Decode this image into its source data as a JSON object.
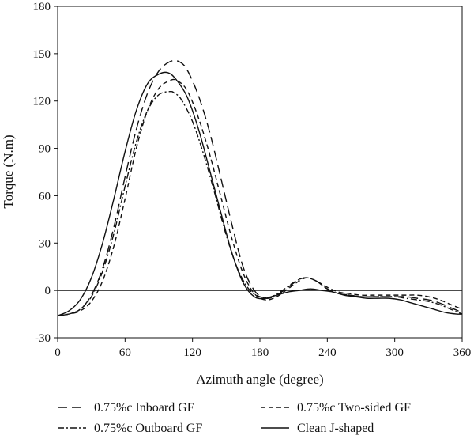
{
  "chart_data": {
    "type": "line",
    "title": "",
    "xlabel": "Azimuth angle (degree)",
    "ylabel": "Torque (N.m)",
    "xlim": [
      0,
      360
    ],
    "ylim": [
      -30,
      180
    ],
    "xticks": [
      0,
      60,
      120,
      180,
      240,
      300,
      360
    ],
    "yticks": [
      -30,
      0,
      30,
      60,
      90,
      120,
      150,
      180
    ],
    "zero_line": true,
    "grid": false,
    "legend_position": "bottom",
    "series": [
      {
        "name": "0.75%c Inboard GF",
        "dash": "long-dash",
        "x": [
          0,
          10,
          20,
          30,
          40,
          50,
          60,
          70,
          80,
          90,
          100,
          108,
          115,
          125,
          135,
          145,
          155,
          165,
          175,
          185,
          195,
          205,
          215,
          222,
          230,
          240,
          250,
          260,
          270,
          280,
          290,
          300,
          310,
          320,
          330,
          340,
          350,
          360
        ],
        "y": [
          -16,
          -15,
          -12,
          -3,
          14,
          40,
          72,
          102,
          125,
          139,
          145,
          145,
          140,
          124,
          101,
          72,
          42,
          15,
          0,
          -5,
          -3,
          2,
          7,
          8,
          6,
          1,
          -2,
          -3,
          -4,
          -4,
          -4,
          -4,
          -4,
          -5,
          -6,
          -8,
          -11,
          -14
        ]
      },
      {
        "name": "0.75%c Two-sided GF",
        "dash": "short-dash",
        "x": [
          0,
          10,
          20,
          30,
          40,
          50,
          60,
          70,
          80,
          90,
          100,
          106,
          115,
          125,
          135,
          145,
          155,
          165,
          175,
          185,
          195,
          205,
          215,
          222,
          230,
          240,
          250,
          260,
          270,
          280,
          290,
          300,
          310,
          320,
          330,
          340,
          350,
          360
        ],
        "y": [
          -16,
          -15,
          -13,
          -7,
          6,
          28,
          58,
          90,
          114,
          128,
          133,
          133,
          127,
          110,
          87,
          60,
          33,
          11,
          -2,
          -6,
          -4,
          1,
          6,
          8,
          6,
          2,
          -1,
          -2,
          -3,
          -3,
          -3,
          -3,
          -3,
          -3,
          -4,
          -6,
          -9,
          -12
        ]
      },
      {
        "name": "0.75%c Outboard GF",
        "dash": "dash-dot",
        "x": [
          0,
          10,
          20,
          30,
          40,
          50,
          60,
          70,
          80,
          90,
          100,
          104,
          110,
          120,
          130,
          140,
          150,
          160,
          170,
          180,
          190,
          200,
          210,
          220,
          230,
          240,
          250,
          260,
          270,
          280,
          290,
          300,
          310,
          320,
          330,
          340,
          350,
          360
        ],
        "y": [
          -16,
          -15,
          -12,
          -4,
          12,
          36,
          66,
          94,
          114,
          124,
          126,
          125,
          121,
          107,
          86,
          61,
          35,
          14,
          1,
          -4,
          -4,
          0,
          5,
          8,
          6,
          1,
          -2,
          -3,
          -4,
          -4,
          -4,
          -4,
          -5,
          -6,
          -7,
          -9,
          -12,
          -15
        ]
      },
      {
        "name": "Clean J-shaped",
        "dash": "solid",
        "x": [
          0,
          10,
          20,
          30,
          40,
          50,
          60,
          70,
          80,
          90,
          98,
          105,
          115,
          125,
          135,
          145,
          155,
          165,
          175,
          185,
          195,
          205,
          215,
          225,
          235,
          245,
          255,
          265,
          275,
          285,
          295,
          305,
          315,
          325,
          335,
          345,
          355,
          360
        ],
        "y": [
          -16,
          -13,
          -6,
          8,
          30,
          58,
          88,
          114,
          131,
          137,
          138,
          134,
          123,
          103,
          77,
          50,
          24,
          5,
          -4,
          -5,
          -3,
          -1,
          0,
          1,
          0,
          -1,
          -3,
          -4,
          -5,
          -5,
          -5,
          -6,
          -8,
          -10,
          -12,
          -14,
          -15,
          -15
        ]
      }
    ]
  }
}
